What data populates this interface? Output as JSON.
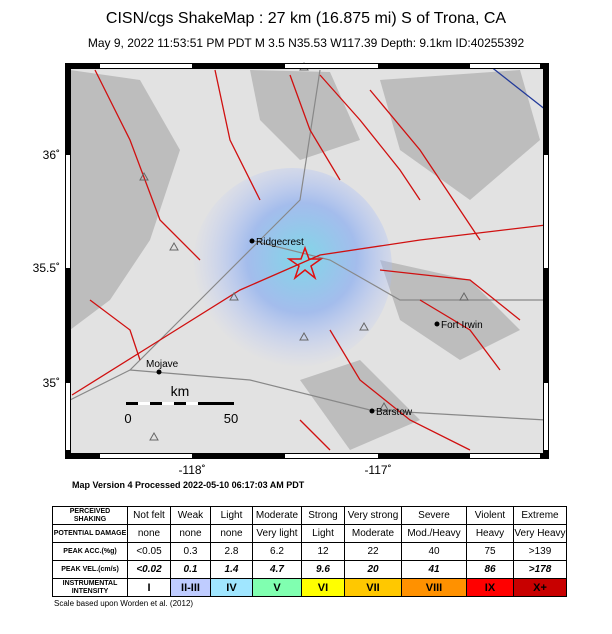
{
  "header": {
    "title": "CISN/cgs ShakeMap : 27 km (16.875 mi) S of Trona, CA",
    "subtitle": "May  9, 2022 11:53:51 PM PDT   M 3.5   N35.53 W117.39   Depth: 9.1km   ID:40255392"
  },
  "map": {
    "lat_labels": [
      "36˚",
      "35.5˚",
      "35˚"
    ],
    "lon_labels": [
      "-118˚",
      "-117˚"
    ],
    "places": [
      "Ridgecrest",
      "Fort Irwin",
      "Mojave",
      "Barstow"
    ],
    "scale": {
      "unit": "km",
      "start": "0",
      "end": "50"
    }
  },
  "footer": "Map Version 4 Processed 2022-05-10 06:17:03 AM PDT",
  "table": {
    "rows": [
      {
        "label": "PERCEIVED SHAKING",
        "cells": [
          "Not felt",
          "Weak",
          "Light",
          "Moderate",
          "Strong",
          "Very strong",
          "Severe",
          "Violent",
          "Extreme"
        ]
      },
      {
        "label": "POTENTIAL DAMAGE",
        "cells": [
          "none",
          "none",
          "none",
          "Very light",
          "Light",
          "Moderate",
          "Mod./Heavy",
          "Heavy",
          "Very Heavy"
        ]
      },
      {
        "label": "PEAK ACC.(%g)",
        "cells": [
          "<0.05",
          "0.3",
          "2.8",
          "6.2",
          "12",
          "22",
          "40",
          "75",
          ">139"
        ]
      },
      {
        "label": "PEAK VEL.(cm/s)",
        "cells": [
          "<0.02",
          "0.1",
          "1.4",
          "4.7",
          "9.6",
          "20",
          "41",
          "86",
          ">178"
        ]
      },
      {
        "label": "INSTRUMENTAL INTENSITY",
        "cells": [
          "I",
          "II-III",
          "IV",
          "V",
          "VI",
          "VII",
          "VIII",
          "IX",
          "X+"
        ]
      }
    ],
    "intensity_colors": [
      "#ffffff",
      "#bfccff",
      "#a0e6ff",
      "#80ffb0",
      "#ffff00",
      "#ffc800",
      "#ff9100",
      "#ff0000",
      "#c80000"
    ]
  },
  "note": "Scale based upon Worden et al. (2012)"
}
